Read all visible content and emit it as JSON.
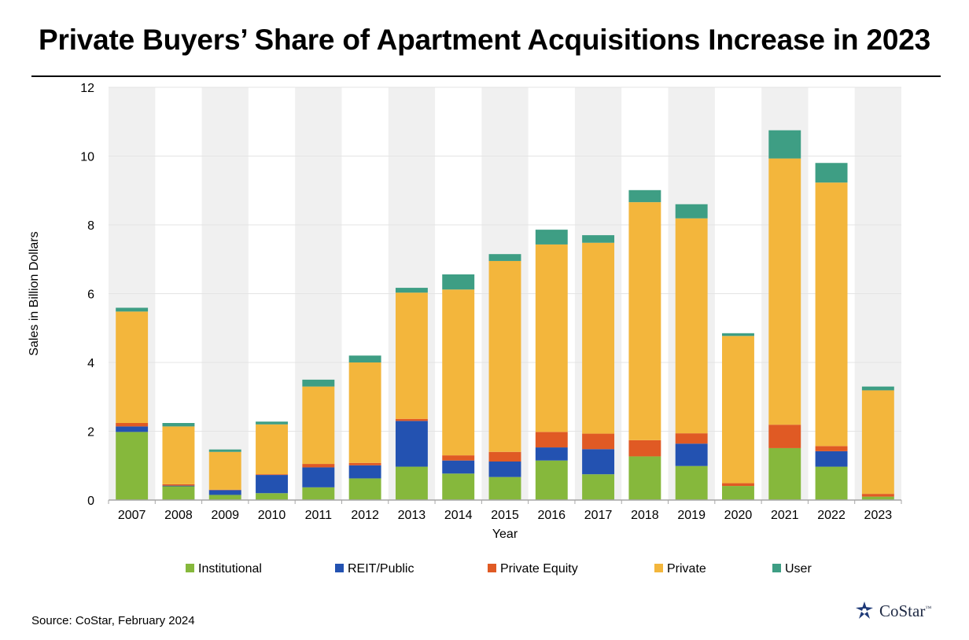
{
  "title": "Private Buyers’ Share of Apartment Acquisitions Increase in 2023",
  "source": "Source: CoStar, February 2024",
  "logo": {
    "text": "CoStar",
    "tm": "™"
  },
  "colors": {
    "Institutional": "#86b83c",
    "REIT/Public": "#2352b1",
    "Private Equity": "#e05a24",
    "Private": "#f3b63c",
    "User": "#3e9e84",
    "band": "#f0f0f0",
    "grid": "#e4e4e4",
    "axis": "#a6a6a6"
  },
  "chart_data": {
    "type": "bar",
    "stacked": true,
    "title": "Private Buyers’ Share of Apartment Acquisitions Increase in 2023",
    "xlabel": "Year",
    "ylabel": "Sales in Billion Dollars",
    "ylim": [
      0,
      12
    ],
    "yticks": [
      0,
      2,
      4,
      6,
      8,
      10,
      12
    ],
    "grid": true,
    "legend_position": "bottom",
    "categories": [
      "2007",
      "2008",
      "2009",
      "2010",
      "2011",
      "2012",
      "2013",
      "2014",
      "2015",
      "2016",
      "2017",
      "2018",
      "2019",
      "2020",
      "2021",
      "2022",
      "2023"
    ],
    "series": [
      {
        "name": "Institutional",
        "values": [
          1.98,
          0.4,
          0.15,
          0.2,
          0.37,
          0.63,
          0.97,
          0.77,
          0.67,
          1.15,
          0.75,
          1.27,
          0.99,
          0.41,
          1.51,
          0.97,
          0.1
        ]
      },
      {
        "name": "REIT/Public",
        "values": [
          0.16,
          0.02,
          0.14,
          0.53,
          0.58,
          0.38,
          1.33,
          0.38,
          0.45,
          0.38,
          0.73,
          0.0,
          0.65,
          0.0,
          0.0,
          0.45,
          0.0
        ]
      },
      {
        "name": "Private Equity",
        "values": [
          0.1,
          0.04,
          0.01,
          0.02,
          0.1,
          0.07,
          0.06,
          0.15,
          0.28,
          0.45,
          0.45,
          0.47,
          0.3,
          0.08,
          0.68,
          0.15,
          0.08
        ]
      },
      {
        "name": "Private",
        "values": [
          3.24,
          1.68,
          1.1,
          1.45,
          2.25,
          2.92,
          3.67,
          4.82,
          5.55,
          5.45,
          5.55,
          6.92,
          6.25,
          4.28,
          7.74,
          7.66,
          3.01
        ]
      },
      {
        "name": "User",
        "values": [
          0.11,
          0.1,
          0.07,
          0.08,
          0.2,
          0.2,
          0.14,
          0.44,
          0.2,
          0.43,
          0.22,
          0.35,
          0.41,
          0.08,
          0.82,
          0.57,
          0.11
        ]
      }
    ]
  }
}
